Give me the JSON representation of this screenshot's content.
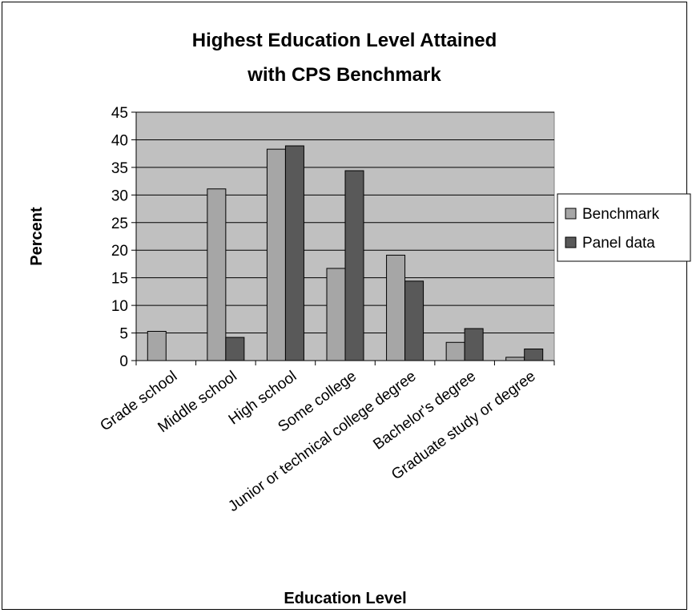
{
  "chart_data": {
    "type": "bar",
    "title": [
      "Highest Education Level Attained",
      "with CPS  Benchmark"
    ],
    "xlabel": "Education Level",
    "ylabel": "Percent",
    "ylim": [
      0,
      45
    ],
    "yticks": [
      0,
      5,
      10,
      15,
      20,
      25,
      30,
      35,
      40,
      45
    ],
    "grid": true,
    "legend_position": "right",
    "categories": [
      "Grade school",
      "Middle school",
      "High school",
      "Some college",
      "Junior or technical college degree",
      "Bachelor's degree",
      "Graduate study or degree"
    ],
    "series": [
      {
        "name": "Benchmark",
        "color": "#a6a6a6",
        "values": [
          5.3,
          31.1,
          38.3,
          16.7,
          19.1,
          3.3,
          0.6
        ]
      },
      {
        "name": "Panel data",
        "color": "#595959",
        "values": [
          0,
          4.2,
          38.9,
          34.4,
          14.4,
          5.8,
          2.1
        ]
      }
    ],
    "plot_background": "#c0c0c0"
  }
}
